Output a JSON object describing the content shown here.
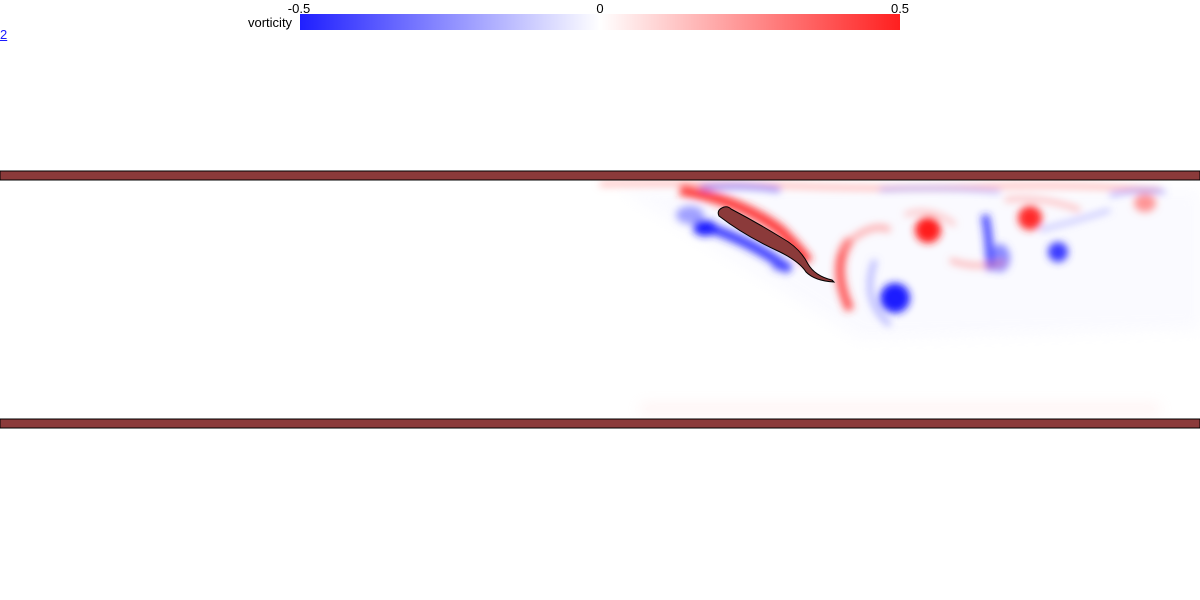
{
  "page_link": {
    "label": "2"
  },
  "colorbar": {
    "label": "vorticity",
    "min_label": "-0.5",
    "mid_label": "0",
    "max_label": "0.5",
    "colors": {
      "negative": "#1f1fff",
      "zero": "#ffffff",
      "positive": "#ff1f1f"
    }
  },
  "scene": {
    "wall_color": "#8b3a3a",
    "body_color": "#8b3a3a"
  }
}
